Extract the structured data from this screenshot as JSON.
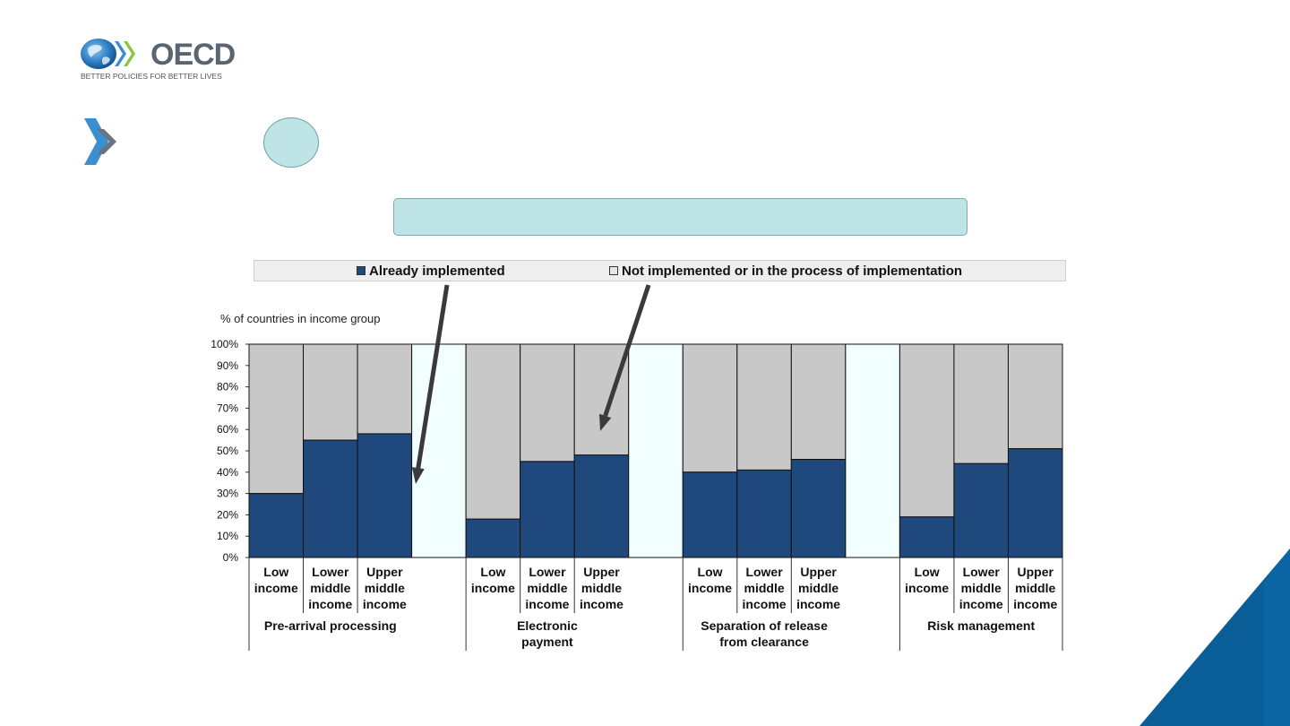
{
  "brand": {
    "name": "OECD",
    "tagline": "BETTER POLICIES FOR BETTER LIVES",
    "colors": {
      "dark_blue": "#1f487c",
      "light_gray": "#c8c8c8",
      "teal": "#bfe4e6",
      "corner_blue": "#0a5e98"
    }
  },
  "title_box": {
    "text": ""
  },
  "chart_data": {
    "type": "bar",
    "stacked": true,
    "ylabel": "% of countries in income group",
    "ylim": [
      0,
      100
    ],
    "yticks": [
      "0%",
      "10%",
      "20%",
      "30%",
      "40%",
      "50%",
      "60%",
      "70%",
      "80%",
      "90%",
      "100%"
    ],
    "legend": {
      "position": "top"
    },
    "series": [
      {
        "name": "Already implemented",
        "color": "#1f487c"
      },
      {
        "name": "Not implemented or in the process of implementation",
        "color": "#c8c8c8"
      }
    ],
    "groups": [
      {
        "label": [
          "Pre-arrival processing"
        ],
        "bars": [
          {
            "label": [
              "Low",
              "income"
            ],
            "implemented": 30
          },
          {
            "label": [
              "Lower",
              "middle",
              "income"
            ],
            "implemented": 55
          },
          {
            "label": [
              "Upper",
              "middle",
              "income"
            ],
            "implemented": 58
          }
        ]
      },
      {
        "label": [
          "Electronic",
          "payment"
        ],
        "bars": [
          {
            "label": [
              "Low",
              "income"
            ],
            "implemented": 18
          },
          {
            "label": [
              "Lower",
              "middle",
              "income"
            ],
            "implemented": 45
          },
          {
            "label": [
              "Upper",
              "middle",
              "income"
            ],
            "implemented": 48
          }
        ]
      },
      {
        "label": [
          "Separation of release",
          "from clearance"
        ],
        "bars": [
          {
            "label": [
              "Low",
              "income"
            ],
            "implemented": 40
          },
          {
            "label": [
              "Lower",
              "middle",
              "income"
            ],
            "implemented": 41
          },
          {
            "label": [
              "Upper",
              "middle",
              "income"
            ],
            "implemented": 46
          }
        ]
      },
      {
        "label": [
          "Risk management"
        ],
        "bars": [
          {
            "label": [
              "Low",
              "income"
            ],
            "implemented": 19
          },
          {
            "label": [
              "Lower",
              "middle",
              "income"
            ],
            "implemented": 44
          },
          {
            "label": [
              "Upper",
              "middle",
              "income"
            ],
            "implemented": 51
          }
        ]
      }
    ]
  }
}
